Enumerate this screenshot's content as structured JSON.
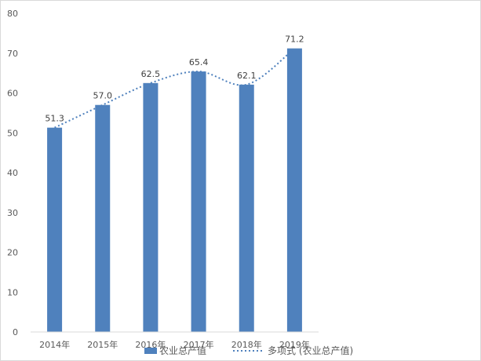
{
  "chart_data": {
    "type": "bar",
    "title": "",
    "xlabel": "",
    "ylabel": "",
    "categories": [
      "2014年",
      "2015年",
      "2016年",
      "2017年",
      "2018年",
      "2019年"
    ],
    "series": [
      {
        "name": "农业总产值",
        "values": [
          51.3,
          57.0,
          62.5,
          65.4,
          62.1,
          71.2
        ],
        "labels": [
          "51.3",
          "57.0",
          "62.5",
          "65.4",
          "62.1",
          "71.2"
        ],
        "color": "#4f81bd"
      }
    ],
    "trendline": {
      "name": "多项式 (农业总产值)",
      "type": "polynomial",
      "style": "dotted",
      "color": "#4f81bd"
    },
    "ylim": [
      0,
      80
    ],
    "yticks": [
      0,
      10,
      20,
      30,
      40,
      50,
      60,
      70,
      80
    ],
    "grid": false,
    "legend_position": "bottom"
  }
}
